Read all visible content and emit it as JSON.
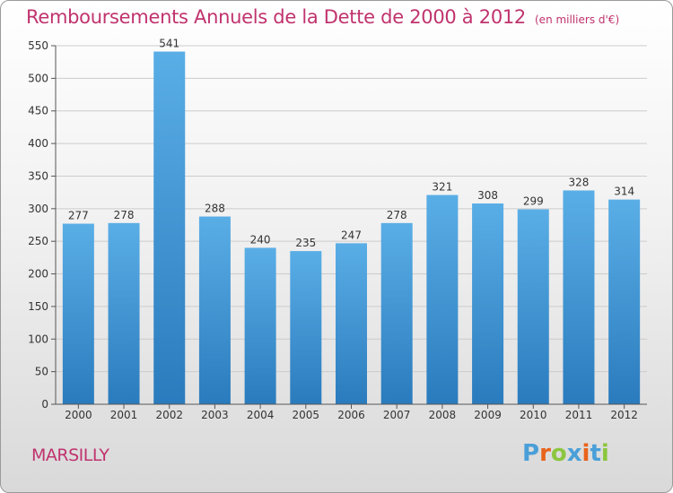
{
  "title": "Remboursements Annuels de la Dette de 2000 à 2012",
  "unit_note": "(en milliers d'€)",
  "place_name": "MARSILLY",
  "brand": {
    "name": "Proxiti",
    "letters": [
      {
        "ch": "P",
        "color": "#4a9fd8"
      },
      {
        "ch": "r",
        "color": "#e8641b"
      },
      {
        "ch": "o",
        "color": "#8cc63f"
      },
      {
        "ch": "x",
        "color": "#4a9fd8"
      },
      {
        "ch": "i",
        "color": "#e8641b"
      },
      {
        "ch": "t",
        "color": "#4a9fd8"
      },
      {
        "ch": "i",
        "color": "#8cc63f"
      }
    ]
  },
  "colors": {
    "title": "#c0336e",
    "bar_top": "#5aaee6",
    "bar_bottom": "#2a7bbd",
    "grid": "#cccccc",
    "axis_text": "#333333"
  },
  "chart_data": {
    "type": "bar",
    "categories": [
      "2000",
      "2001",
      "2002",
      "2003",
      "2004",
      "2005",
      "2006",
      "2007",
      "2008",
      "2009",
      "2010",
      "2011",
      "2012"
    ],
    "values": [
      277,
      278,
      541,
      288,
      240,
      235,
      247,
      278,
      321,
      308,
      299,
      328,
      314
    ],
    "data_labels": [
      "277",
      "278",
      "541",
      "288",
      "240",
      "235",
      "247",
      "278",
      "321",
      "308",
      "299",
      "328",
      "314"
    ],
    "title": "Remboursements Annuels de la Dette de 2000 à 2012",
    "xlabel": "",
    "ylabel": "",
    "ylim": [
      0,
      550
    ],
    "yticks": [
      0,
      50,
      100,
      150,
      200,
      250,
      300,
      350,
      400,
      450,
      500,
      550
    ],
    "grid": true,
    "legend": "none"
  }
}
